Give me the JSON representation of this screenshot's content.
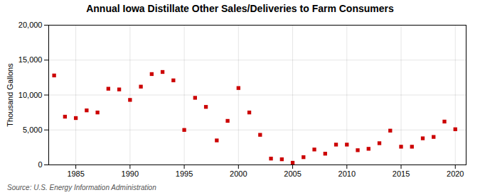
{
  "chart_data": {
    "type": "scatter",
    "title": "Annual Iowa Distillate Other Sales/Deliveries to Farm Consumers",
    "ylabel": "Thousand Gallons",
    "caption": "Source: U.S. Energy Information Administration",
    "x": [
      1983,
      1984,
      1985,
      1986,
      1987,
      1988,
      1989,
      1990,
      1991,
      1992,
      1993,
      1994,
      1995,
      1996,
      1997,
      1998,
      1999,
      2000,
      2001,
      2002,
      2003,
      2004,
      2005,
      2006,
      2007,
      2008,
      2009,
      2010,
      2011,
      2012,
      2013,
      2014,
      2015,
      2016,
      2017,
      2018,
      2019,
      2020
    ],
    "values": [
      12800,
      6900,
      6700,
      7800,
      7500,
      10900,
      10800,
      9300,
      11200,
      13000,
      13300,
      12100,
      5000,
      9600,
      8300,
      3500,
      6300,
      11000,
      7500,
      4300,
      900,
      800,
      300,
      1100,
      2200,
      1600,
      2900,
      2900,
      2100,
      2300,
      3100,
      4900,
      2600,
      2600,
      3800,
      4000,
      6200,
      5100
    ],
    "color": "#cc0000",
    "marker": "square",
    "xlim": [
      1982.5,
      2021
    ],
    "xticks": [
      1985,
      1990,
      1995,
      2000,
      2005,
      2010,
      2015,
      2020
    ],
    "ylim": [
      0,
      20000
    ],
    "yticks": [
      0,
      {
        "value": 5000,
        "label": "5,000"
      },
      {
        "value": 10000,
        "label": "10,000"
      },
      {
        "value": 15000,
        "label": "15,000"
      },
      {
        "value": 20000,
        "label": "20,000"
      }
    ],
    "grid": true
  }
}
